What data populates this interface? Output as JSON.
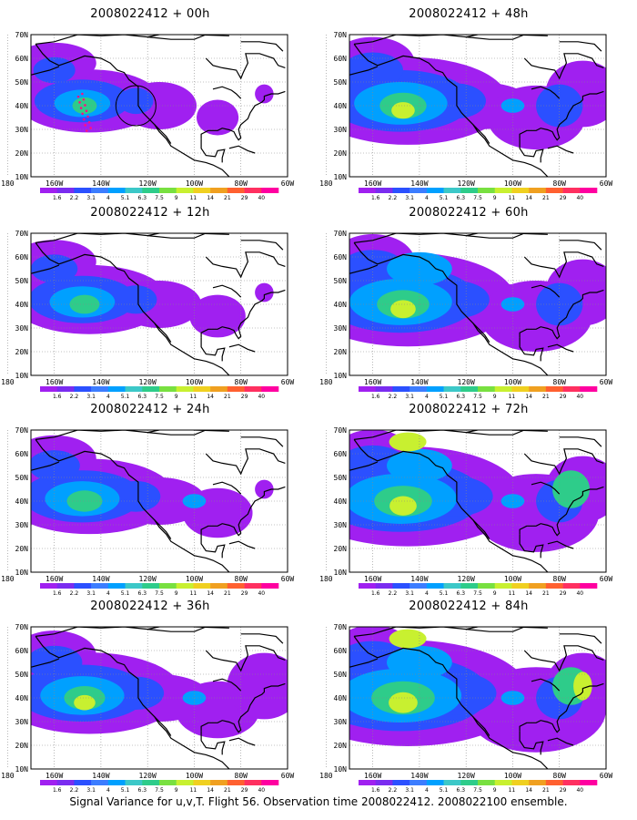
{
  "panels": [
    {
      "title": "2008022412 + 00h",
      "intensity": 1,
      "flight_track": true
    },
    {
      "title": "2008022412 + 12h",
      "intensity": 2,
      "flight_track": false
    },
    {
      "title": "2008022412 + 24h",
      "intensity": 3,
      "flight_track": false
    },
    {
      "title": "2008022412 + 36h",
      "intensity": 4,
      "flight_track": false
    },
    {
      "title": "2008022412 + 48h",
      "intensity": 5,
      "flight_track": false
    },
    {
      "title": "2008022412 + 60h",
      "intensity": 6,
      "flight_track": false
    },
    {
      "title": "2008022412 + 72h",
      "intensity": 7,
      "flight_track": false
    },
    {
      "title": "2008022412 + 84h",
      "intensity": 8,
      "flight_track": false
    }
  ],
  "lat_labels": [
    "10N",
    "20N",
    "30N",
    "40N",
    "50N",
    "60N",
    "70N"
  ],
  "lon_labels": [
    "180",
    "160W",
    "140W",
    "120W",
    "100W",
    "80W",
    "60W"
  ],
  "colorbar": {
    "labels": [
      "1.6",
      "2.2",
      "3.1",
      "4",
      "5.1",
      "6.3",
      "7.5",
      "9",
      "11",
      "14",
      "21",
      "29",
      "40"
    ],
    "colors": [
      "#a020f0",
      "#7a2cf0",
      "#2b50ff",
      "#3c7dff",
      "#00a0ff",
      "#3cc8c8",
      "#2ecc8a",
      "#78e040",
      "#c8f030",
      "#f0d020",
      "#f0a020",
      "#ff6030",
      "#ff3060",
      "#ff00a0"
    ]
  },
  "footer": "Signal Variance for u,v,T. Flight 56. Observation time 2008022412. 2008022100 ensemble."
}
